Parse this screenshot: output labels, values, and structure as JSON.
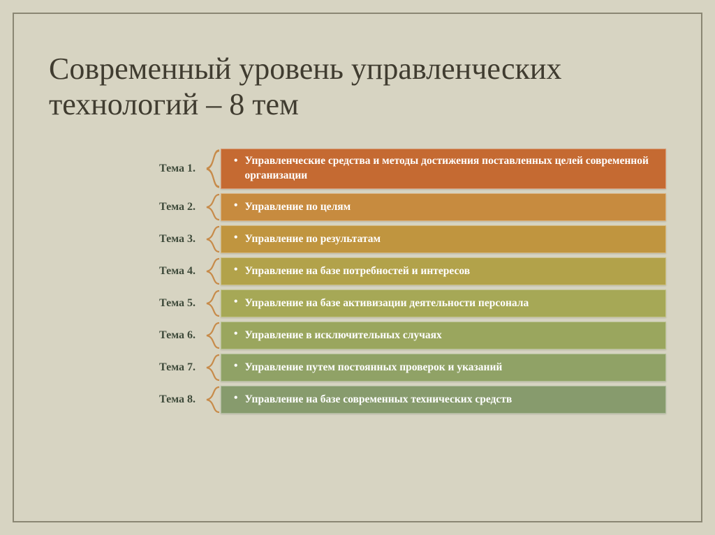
{
  "title": "Современный уровень управленческих технологий – 8 тем",
  "title_fontsize": 44,
  "title_color": "#403c30",
  "background_color": "#d7d4c2",
  "frame_border_color": "#8a8673",
  "brace_color": "#c78b4a",
  "label_color": "#3e4a3a",
  "label_fontsize": 16,
  "bar_fontsize": 15.5,
  "bar_text_color": "#ffffff",
  "topics": [
    {
      "label": "Тема 1.",
      "text": "Управленческие средства и методы достижения поставленных целей современной организации",
      "color": "#c56a32"
    },
    {
      "label": "Тема 2.",
      "text": "Управление по целям",
      "color": "#c78b3f"
    },
    {
      "label": "Тема 3.",
      "text": "Управление по результатам",
      "color": "#c0953f"
    },
    {
      "label": "Тема 4.",
      "text": "Управление на базе потребностей и интересов",
      "color": "#b2a24a"
    },
    {
      "label": "Тема 5.",
      "text": "Управление на базе активизации деятельности персонала",
      "color": "#a6a856"
    },
    {
      "label": "Тема 6.",
      "text": "Управление в исключительных случаях",
      "color": "#9aa65e"
    },
    {
      "label": "Тема 7.",
      "text": "Управление путем постоянных проверок и указаний",
      "color": "#90a266"
    },
    {
      "label": "Тема 8.",
      "text": "Управление на базе современных технических средств",
      "color": "#879b6d"
    }
  ]
}
